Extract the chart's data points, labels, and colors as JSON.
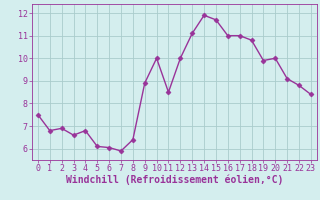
{
  "x": [
    0,
    1,
    2,
    3,
    4,
    5,
    6,
    7,
    8,
    9,
    10,
    11,
    12,
    13,
    14,
    15,
    16,
    17,
    18,
    19,
    20,
    21,
    22,
    23
  ],
  "y": [
    7.5,
    6.8,
    6.9,
    6.6,
    6.8,
    6.1,
    6.05,
    5.9,
    6.4,
    8.9,
    10.0,
    8.5,
    10.0,
    11.1,
    11.9,
    11.7,
    11.0,
    11.0,
    10.8,
    9.9,
    10.0,
    9.1,
    8.8,
    8.4
  ],
  "line_color": "#993399",
  "marker": "D",
  "marker_size": 2.5,
  "linewidth": 1.0,
  "xlabel": "Windchill (Refroidissement éolien,°C)",
  "xlabel_fontsize": 7.0,
  "xlabel_color": "#993399",
  "xlim": [
    -0.5,
    23.5
  ],
  "ylim": [
    5.5,
    12.4
  ],
  "yticks": [
    6,
    7,
    8,
    9,
    10,
    11,
    12
  ],
  "xticks": [
    0,
    1,
    2,
    3,
    4,
    5,
    6,
    7,
    8,
    9,
    10,
    11,
    12,
    13,
    14,
    15,
    16,
    17,
    18,
    19,
    20,
    21,
    22,
    23
  ],
  "tick_fontsize": 6.0,
  "tick_color": "#993399",
  "grid_color": "#aacccc",
  "background_color": "#d4eeee",
  "spine_color": "#993399"
}
